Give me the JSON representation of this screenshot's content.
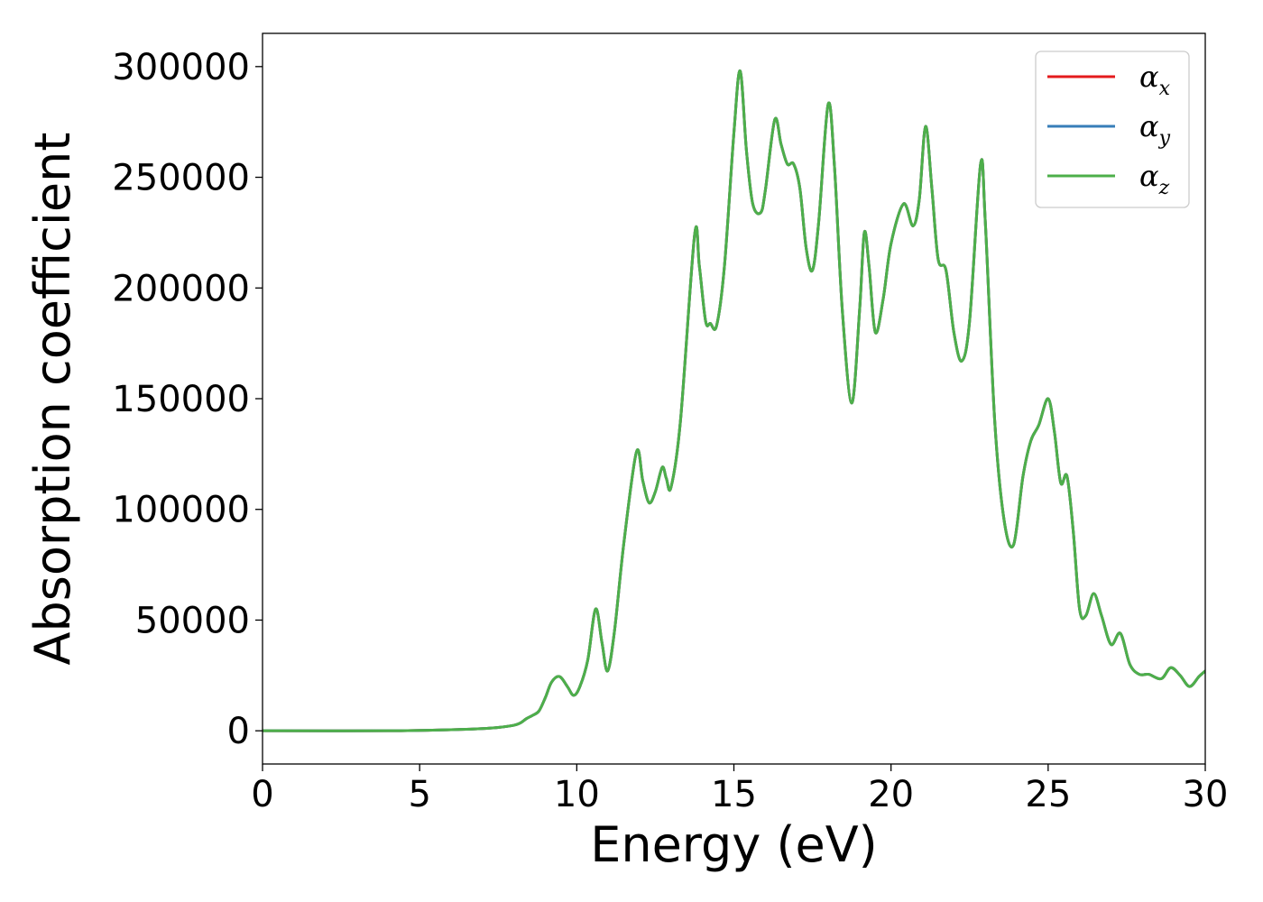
{
  "chart_data": {
    "type": "line",
    "xlabel": "Energy (eV)",
    "ylabel": "Absorption coefficient",
    "xlim": [
      0,
      30
    ],
    "ylim": [
      -15000,
      315000
    ],
    "xticks": [
      0,
      5,
      10,
      15,
      20,
      25,
      30
    ],
    "yticks": [
      0,
      50000,
      100000,
      150000,
      200000,
      250000,
      300000
    ],
    "grid": false,
    "legend_position": "top-right",
    "x": [
      0,
      4,
      6,
      7,
      7.5,
      8,
      8.2,
      8.4,
      8.6,
      8.8,
      9.0,
      9.2,
      9.45,
      9.7,
      9.9,
      10.1,
      10.35,
      10.6,
      10.8,
      10.98,
      11.2,
      11.5,
      11.9,
      12.1,
      12.3,
      12.5,
      12.72,
      12.85,
      13.0,
      13.3,
      13.75,
      13.9,
      14.1,
      14.25,
      14.45,
      14.7,
      15.0,
      15.2,
      15.4,
      15.6,
      15.85,
      16.0,
      16.3,
      16.5,
      16.7,
      16.9,
      17.1,
      17.3,
      17.5,
      17.7,
      18.0,
      18.2,
      18.45,
      18.75,
      19.0,
      19.15,
      19.3,
      19.5,
      19.75,
      20.0,
      20.4,
      20.7,
      20.9,
      21.1,
      21.3,
      21.5,
      21.75,
      22.0,
      22.25,
      22.5,
      22.85,
      23.0,
      23.3,
      23.6,
      23.9,
      24.2,
      24.45,
      24.7,
      25.0,
      25.2,
      25.4,
      25.6,
      25.8,
      26.0,
      26.2,
      26.45,
      26.7,
      27.0,
      27.3,
      27.6,
      27.9,
      28.2,
      28.6,
      28.9,
      29.2,
      29.5,
      29.8,
      30.0
    ],
    "series": [
      {
        "name": "αx",
        "name_base": "α",
        "name_sub": "x",
        "color": "#e41a1c",
        "values": [
          0,
          0,
          500,
          1000,
          1500,
          2500,
          3500,
          5500,
          7000,
          9000,
          15000,
          22000,
          24500,
          20000,
          16000,
          20000,
          32000,
          55000,
          40000,
          27000,
          45000,
          85000,
          126000,
          113000,
          103000,
          108000,
          119000,
          114000,
          110000,
          140000,
          224000,
          210000,
          185000,
          184000,
          183000,
          210000,
          270000,
          298000,
          262000,
          238000,
          234000,
          244000,
          276000,
          265000,
          256000,
          256000,
          245000,
          218000,
          208000,
          230000,
          283000,
          255000,
          190000,
          148000,
          190000,
          225000,
          210000,
          180000,
          195000,
          220000,
          238000,
          228000,
          240000,
          273000,
          245000,
          213000,
          208000,
          180000,
          167000,
          185000,
          256000,
          230000,
          140000,
          95000,
          84000,
          115000,
          131000,
          138000,
          150000,
          135000,
          112000,
          115000,
          90000,
          55000,
          52000,
          62000,
          52000,
          39000,
          44000,
          30000,
          25500,
          25500,
          23500,
          28500,
          25000,
          20000,
          24500,
          27000
        ]
      },
      {
        "name": "αy",
        "name_base": "α",
        "name_sub": "y",
        "color": "#377eb8",
        "values": [
          0,
          0,
          500,
          1000,
          1500,
          2500,
          3500,
          5500,
          7000,
          9000,
          15000,
          22000,
          24500,
          20000,
          16000,
          20000,
          32000,
          55000,
          40000,
          27000,
          45000,
          85000,
          126000,
          113000,
          103000,
          108000,
          119000,
          114000,
          110000,
          140000,
          224000,
          210000,
          185000,
          184000,
          183000,
          210000,
          270000,
          298000,
          262000,
          238000,
          234000,
          244000,
          276000,
          265000,
          256000,
          256000,
          245000,
          218000,
          208000,
          230000,
          283000,
          255000,
          190000,
          148000,
          190000,
          225000,
          210000,
          180000,
          195000,
          220000,
          238000,
          228000,
          240000,
          273000,
          245000,
          213000,
          208000,
          180000,
          167000,
          185000,
          256000,
          230000,
          140000,
          95000,
          84000,
          115000,
          131000,
          138000,
          150000,
          135000,
          112000,
          115000,
          90000,
          55000,
          52000,
          62000,
          52000,
          39000,
          44000,
          30000,
          25500,
          25500,
          23500,
          28500,
          25000,
          20000,
          24500,
          27000
        ]
      },
      {
        "name": "αz",
        "name_base": "α",
        "name_sub": "z",
        "color": "#4daf4a",
        "values": [
          0,
          0,
          500,
          1000,
          1500,
          2500,
          3500,
          5500,
          7000,
          9000,
          15000,
          22000,
          24500,
          20000,
          16000,
          20000,
          32000,
          55000,
          40000,
          27000,
          45000,
          85000,
          126000,
          113000,
          103000,
          108000,
          119000,
          114000,
          110000,
          140000,
          224000,
          210000,
          185000,
          184000,
          183000,
          210000,
          270000,
          298000,
          262000,
          238000,
          234000,
          244000,
          276000,
          265000,
          256000,
          256000,
          245000,
          218000,
          208000,
          230000,
          283000,
          255000,
          190000,
          148000,
          190000,
          225000,
          210000,
          180000,
          195000,
          220000,
          238000,
          228000,
          240000,
          273000,
          245000,
          213000,
          208000,
          180000,
          167000,
          185000,
          256000,
          230000,
          140000,
          95000,
          84000,
          115000,
          131000,
          138000,
          150000,
          135000,
          112000,
          115000,
          90000,
          55000,
          52000,
          62000,
          52000,
          39000,
          44000,
          30000,
          25500,
          25500,
          23500,
          28500,
          25000,
          20000,
          24500,
          27000
        ]
      }
    ]
  }
}
